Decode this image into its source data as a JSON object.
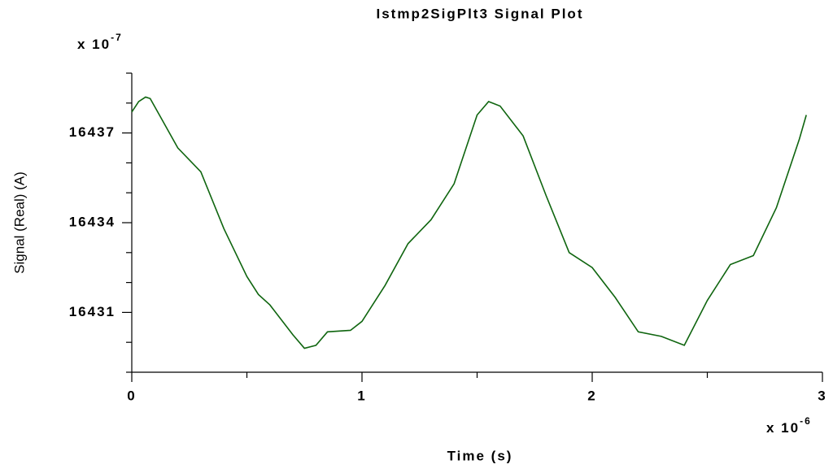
{
  "chart_data": {
    "type": "line",
    "title": "Istmp2SigPlt3 Signal Plot",
    "x_label": "Time (s)",
    "y_label": "Signal (Real) (A)",
    "x_multiplier": {
      "base": "x 10",
      "exponent": "-6"
    },
    "y_multiplier": {
      "base": "x 10",
      "exponent": "-7"
    },
    "xlim": [
      0,
      3
    ],
    "xticks": [
      0,
      1,
      2,
      3
    ],
    "x_minor_ticks": [
      0.5,
      1.5,
      2.5
    ],
    "ylim": [
      16429,
      16439
    ],
    "yticks": [
      16431,
      16434,
      16437
    ],
    "y_minor_ticks": [
      16429,
      16430,
      16432,
      16433,
      16435,
      16436,
      16438,
      16439
    ],
    "x": [
      0,
      0.03,
      0.06,
      0.08,
      0.12,
      0.2,
      0.3,
      0.4,
      0.5,
      0.55,
      0.6,
      0.7,
      0.75,
      0.8,
      0.85,
      0.95,
      1.0,
      1.1,
      1.2,
      1.3,
      1.4,
      1.5,
      1.55,
      1.6,
      1.7,
      1.8,
      1.9,
      2.0,
      2.1,
      2.2,
      2.3,
      2.4,
      2.5,
      2.6,
      2.7,
      2.8,
      2.9,
      2.93
    ],
    "series": [
      {
        "name": "Signal",
        "color": "#0f650f",
        "values": [
          16437.7,
          16438.05,
          16438.2,
          16438.15,
          16437.6,
          16436.5,
          16435.7,
          16433.8,
          16432.2,
          16431.6,
          16431.25,
          16430.25,
          16429.8,
          16429.9,
          16430.35,
          16430.4,
          16430.7,
          16431.9,
          16433.3,
          16434.1,
          16435.3,
          16437.6,
          16438.05,
          16437.9,
          16436.9,
          16434.9,
          16433.0,
          16432.5,
          16431.5,
          16430.35,
          16430.2,
          16429.9,
          16431.4,
          16432.6,
          16432.9,
          16434.5,
          16436.8,
          16437.6
        ]
      }
    ]
  }
}
